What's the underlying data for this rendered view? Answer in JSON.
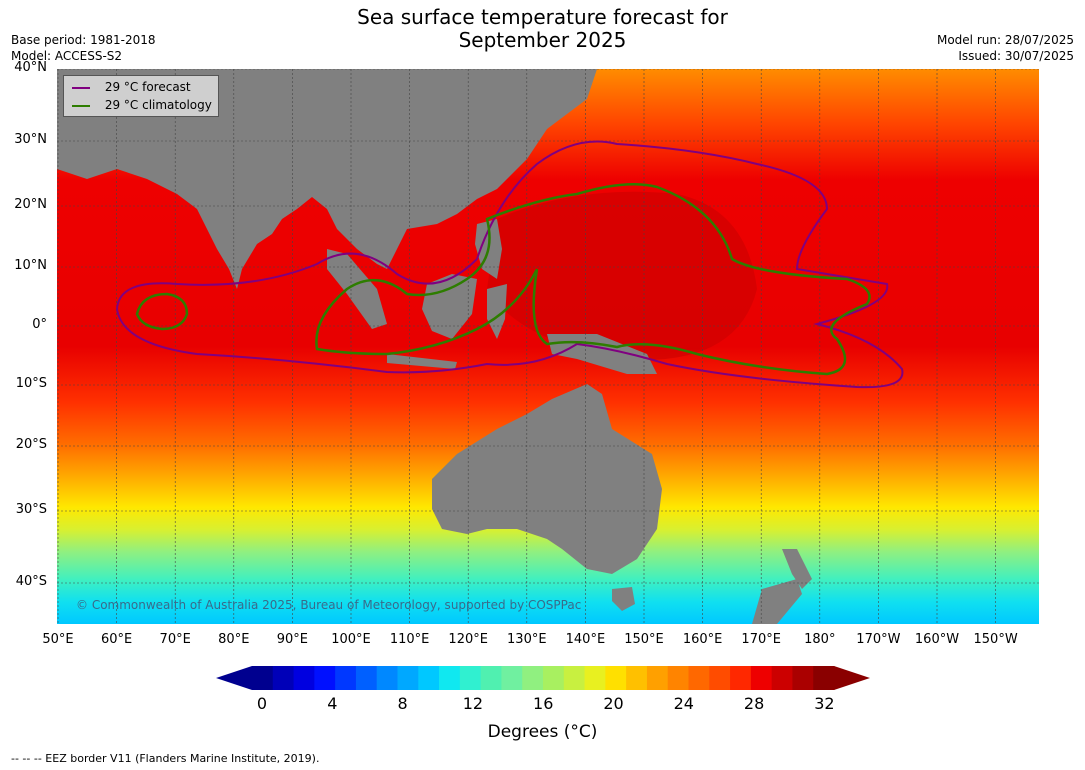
{
  "header": {
    "title_line1": "Sea surface temperature forecast for",
    "title_line2": "September 2025",
    "base_period": "Base period: 1981-2018",
    "model": "Model: ACCESS-S2",
    "model_run": "Model run: 28/07/2025",
    "issued": "Issued: 30/07/2025"
  },
  "map": {
    "lat_labels": [
      "40°N",
      "30°N",
      "20°N",
      "10°N",
      "0°",
      "10°S",
      "20°S",
      "30°S",
      "40°S"
    ],
    "lon_labels": [
      "50°E",
      "60°E",
      "70°E",
      "80°E",
      "90°E",
      "100°E",
      "110°E",
      "120°E",
      "130°E",
      "140°E",
      "150°E",
      "160°E",
      "170°E",
      "180°",
      "170°W",
      "160°W",
      "150°W"
    ],
    "land_color": "#808080",
    "forecast_line_color": "#800080",
    "climatology_line_color": "#2e7d00",
    "copyright": "© Commonwealth of Australia 2025, Bureau of Meteorology, supported by COSPPac"
  },
  "legend": {
    "forecast_label": "29 °C  forecast",
    "climatology_label": "29 °C  climatology"
  },
  "colorbar": {
    "ticks": [
      "0",
      "4",
      "8",
      "12",
      "16",
      "20",
      "24",
      "28",
      "32"
    ],
    "label": "Degrees (°C)",
    "colors": [
      "#00008f",
      "#0000b8",
      "#0000e0",
      "#0010ff",
      "#0038ff",
      "#0060ff",
      "#0088ff",
      "#00a8ff",
      "#00c8ff",
      "#10e8f0",
      "#30f0d0",
      "#50f0b0",
      "#70f0a0",
      "#90f080",
      "#a8f060",
      "#c8f040",
      "#e8f020",
      "#ffe000",
      "#ffc000",
      "#ffa000",
      "#ff8400",
      "#ff6800",
      "#ff4c00",
      "#ff2800",
      "#ee0000",
      "#cc0000",
      "#aa0000",
      "#8a0000"
    ]
  },
  "footnote": "-- -- -- EEZ border V11 (Flanders Marine Institute, 2019)."
}
